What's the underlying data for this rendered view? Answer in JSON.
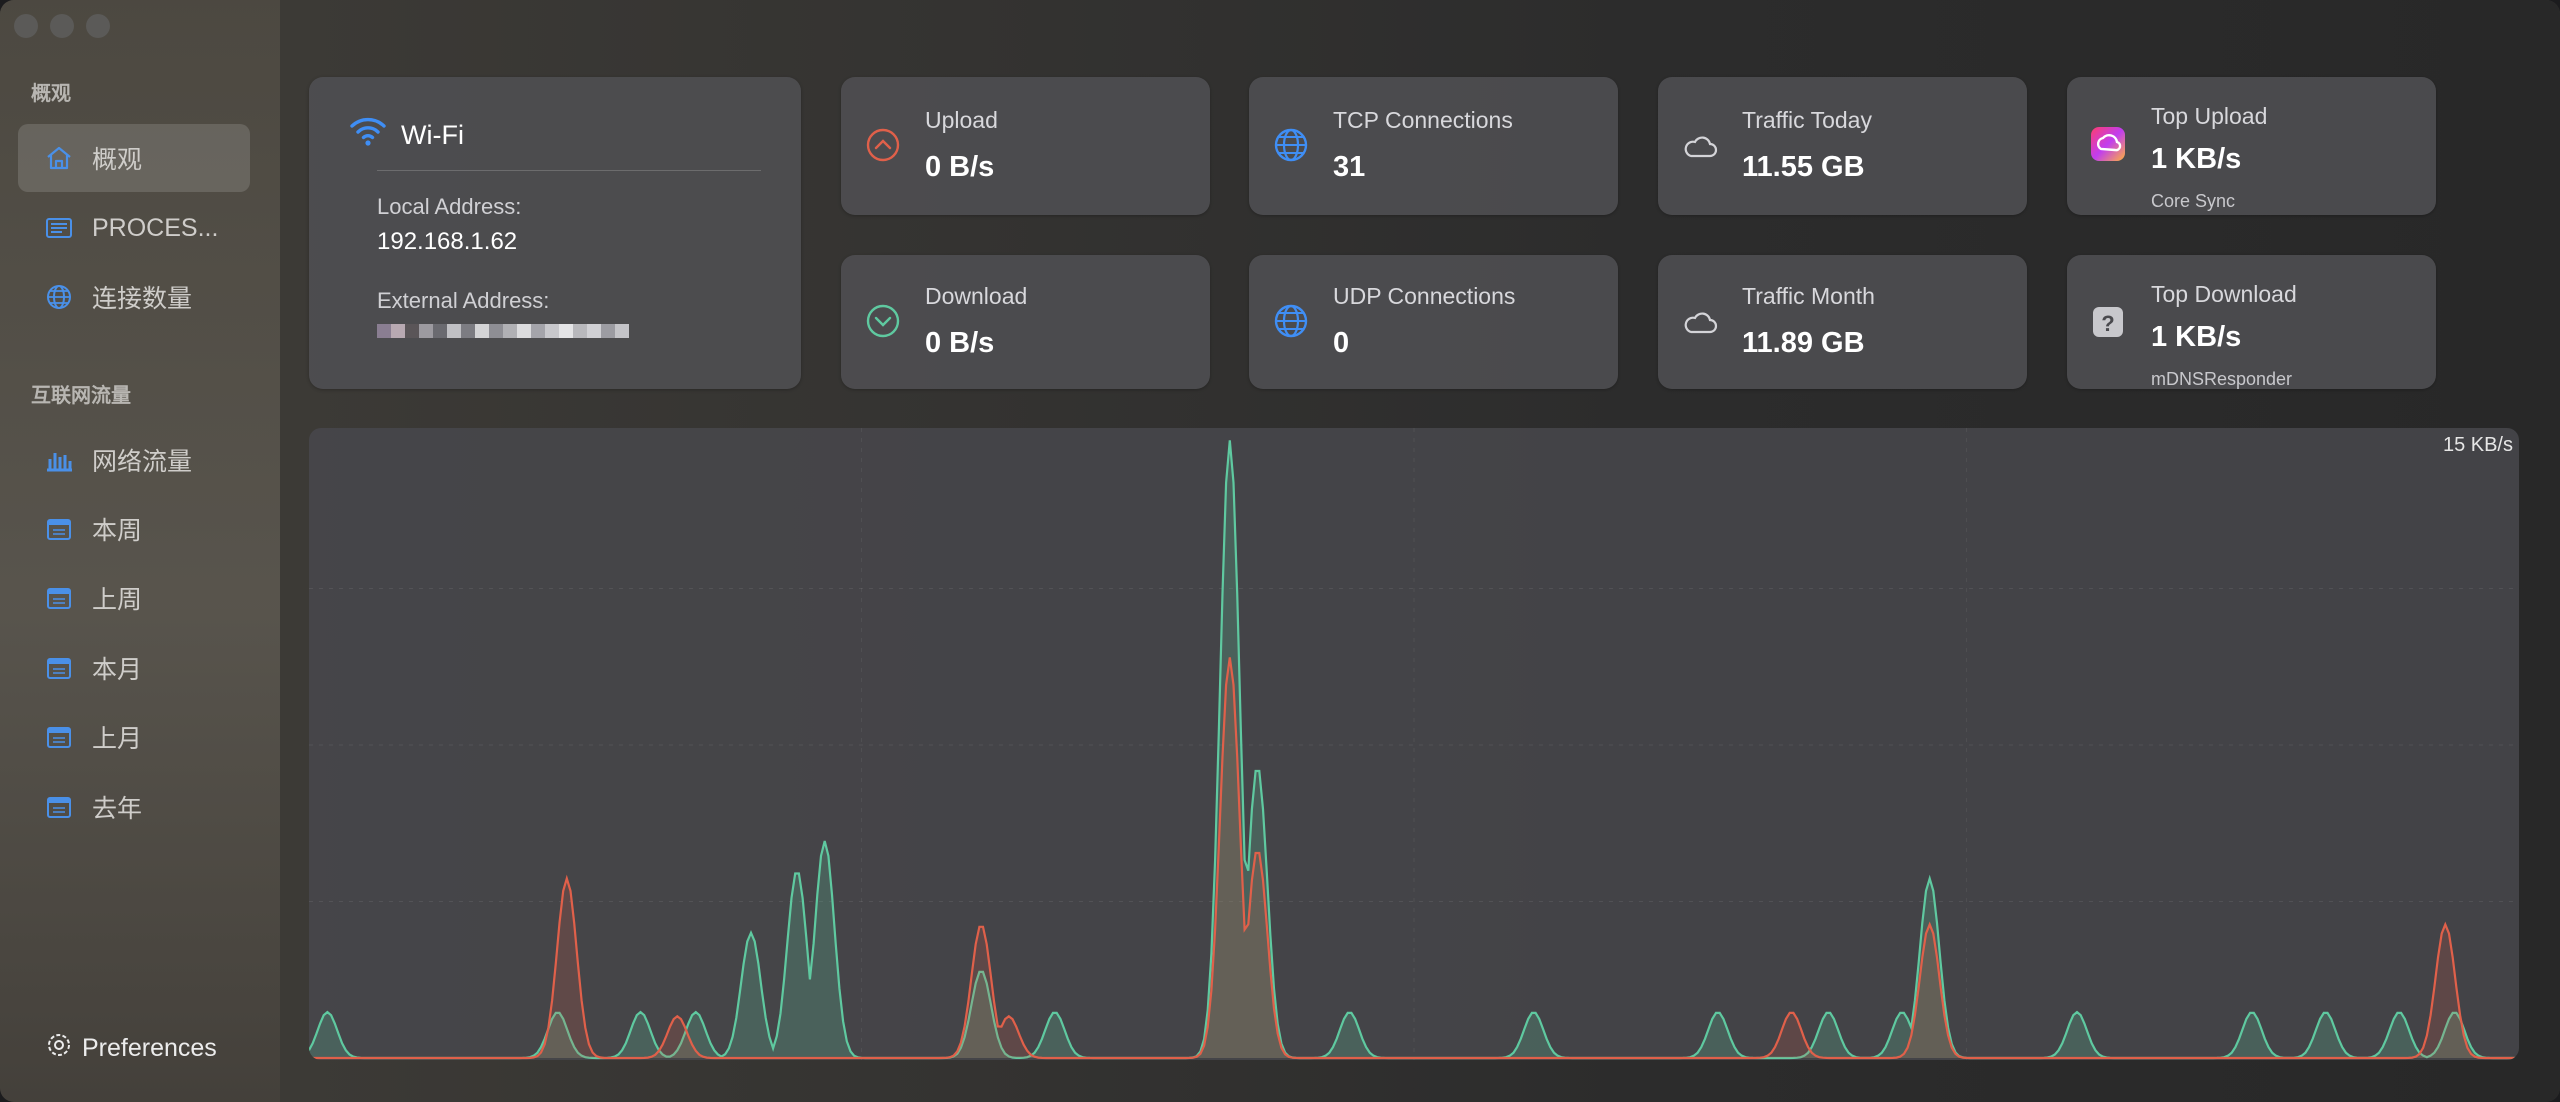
{
  "sidebar": {
    "section1_title": "概观",
    "section2_title": "互联网流量",
    "items": [
      {
        "label": "概观",
        "icon": "house-icon",
        "active": true
      },
      {
        "label": "PROCES...",
        "icon": "list-icon",
        "active": false
      },
      {
        "label": "连接数量",
        "icon": "globe-icon",
        "active": false
      },
      {
        "label": "网络流量",
        "icon": "bar-chart-icon",
        "active": false
      },
      {
        "label": "本周",
        "icon": "calendar-icon",
        "active": false
      },
      {
        "label": "上周",
        "icon": "calendar-icon",
        "active": false
      },
      {
        "label": "本月",
        "icon": "calendar-icon",
        "active": false
      },
      {
        "label": "上月",
        "icon": "calendar-icon",
        "active": false
      },
      {
        "label": "去年",
        "icon": "calendar-icon",
        "active": false
      }
    ],
    "preferences_label": "Preferences"
  },
  "network": {
    "name": "Wi-Fi",
    "local_label": "Local Address:",
    "local_value": "192.168.1.62",
    "external_label": "External Address:"
  },
  "stats": {
    "upload": {
      "label": "Upload",
      "value": "0 B/s"
    },
    "download": {
      "label": "Download",
      "value": "0 B/s"
    },
    "tcp": {
      "label": "TCP Connections",
      "value": "31"
    },
    "udp": {
      "label": "UDP Connections",
      "value": "0"
    },
    "traffic_today": {
      "label": "Traffic Today",
      "value": "11.55 GB"
    },
    "traffic_month": {
      "label": "Traffic Month",
      "value": "11.89 GB"
    },
    "top_upload": {
      "label": "Top Upload",
      "value": "1 KB/s",
      "app": "Core Sync"
    },
    "top_download": {
      "label": "Top Download",
      "value": "1 KB/s",
      "app": "mDNSResponder"
    }
  },
  "colors": {
    "upload": "#e0604a",
    "download": "#5fc9a0",
    "accent_blue": "#3f8ef5"
  },
  "chart_data": {
    "type": "area",
    "max_label": "15 KB/s",
    "ylim": [
      0,
      15
    ],
    "samples": 120,
    "series": [
      {
        "name": "Download",
        "peaks": [
          [
            1.0,
            1.1
          ],
          [
            13.5,
            1.1
          ],
          [
            18.0,
            1.1
          ],
          [
            21.0,
            1.1
          ],
          [
            24.0,
            3.0
          ],
          [
            26.5,
            4.5
          ],
          [
            28.0,
            5.2
          ],
          [
            36.5,
            2.1
          ],
          [
            40.5,
            1.1
          ],
          [
            50.0,
            14.8
          ],
          [
            51.5,
            7.0
          ],
          [
            56.5,
            1.1
          ],
          [
            66.5,
            1.1
          ],
          [
            76.5,
            1.1
          ],
          [
            82.5,
            1.1
          ],
          [
            86.5,
            1.1
          ],
          [
            88.0,
            4.3
          ],
          [
            96.0,
            1.1
          ],
          [
            105.5,
            1.1
          ],
          [
            109.5,
            1.1
          ],
          [
            113.5,
            1.1
          ],
          [
            116.5,
            1.1
          ]
        ]
      },
      {
        "name": "Upload",
        "peaks": [
          [
            14.0,
            4.3
          ],
          [
            20.0,
            1.0
          ],
          [
            36.5,
            3.2
          ],
          [
            38.0,
            1.0
          ],
          [
            50.0,
            9.6
          ],
          [
            51.5,
            5.0
          ],
          [
            80.5,
            1.1
          ],
          [
            88.0,
            3.2
          ],
          [
            116.0,
            3.2
          ]
        ]
      }
    ]
  }
}
